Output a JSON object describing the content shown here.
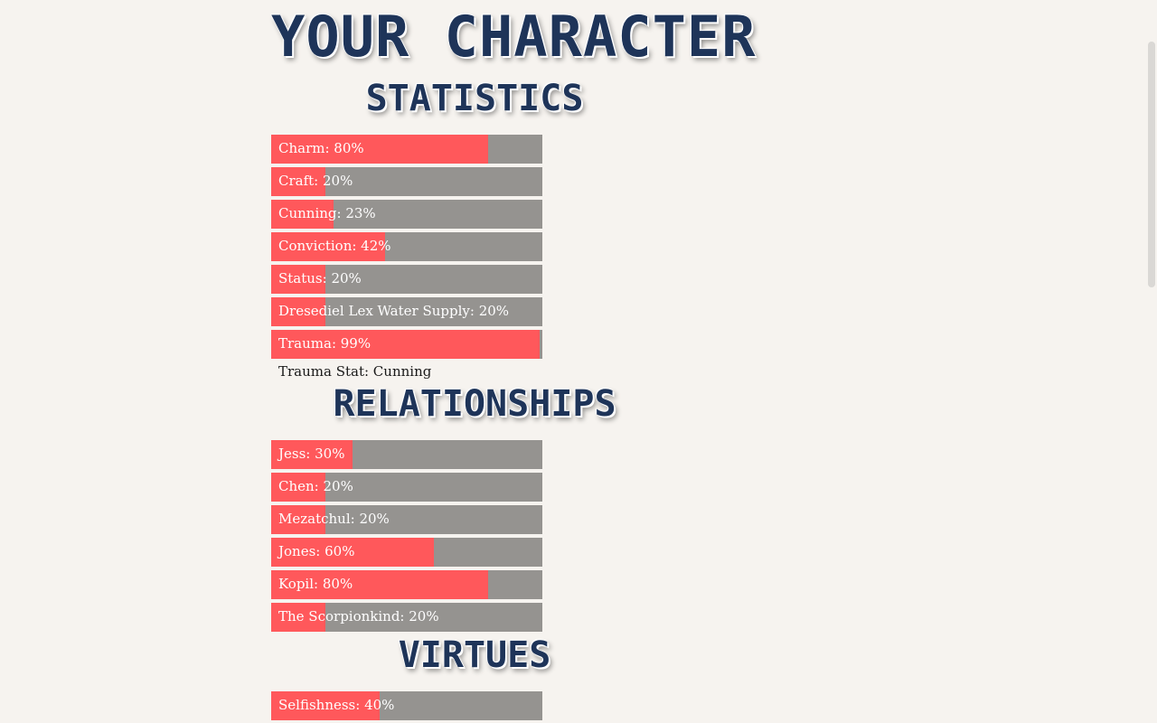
{
  "title": "YOUR CHARACTER",
  "sections": {
    "statistics": {
      "heading": "STATISTICS",
      "bars": [
        {
          "label": "Charm: 80%",
          "value": 80
        },
        {
          "label": "Craft: 20%",
          "value": 20
        },
        {
          "label": "Cunning: 23%",
          "value": 23
        },
        {
          "label": "Conviction: 42%",
          "value": 42
        },
        {
          "label": "Status: 20%",
          "value": 20
        },
        {
          "label": "Dresediel Lex Water Supply: 20%",
          "value": 20
        },
        {
          "label": "Trauma: 99%",
          "value": 99
        }
      ],
      "note": "Trauma Stat: Cunning"
    },
    "relationships": {
      "heading": "RELATIONSHIPS",
      "bars": [
        {
          "label": "Jess: 30%",
          "value": 30
        },
        {
          "label": "Chen: 20%",
          "value": 20
        },
        {
          "label": "Mezatchul: 20%",
          "value": 20
        },
        {
          "label": "Jones: 60%",
          "value": 60
        },
        {
          "label": "Kopil: 80%",
          "value": 80
        },
        {
          "label": "The Scorpionkind: 20%",
          "value": 20
        }
      ]
    },
    "virtues": {
      "heading": "VIRTUES",
      "bars": [
        {
          "label": "Selfishness: 40%",
          "value": 40
        }
      ]
    }
  },
  "colors": {
    "background": "#f6f3ef",
    "heading": "#1e3459",
    "bar_fill": "#ff585b",
    "bar_track": "#959390"
  }
}
